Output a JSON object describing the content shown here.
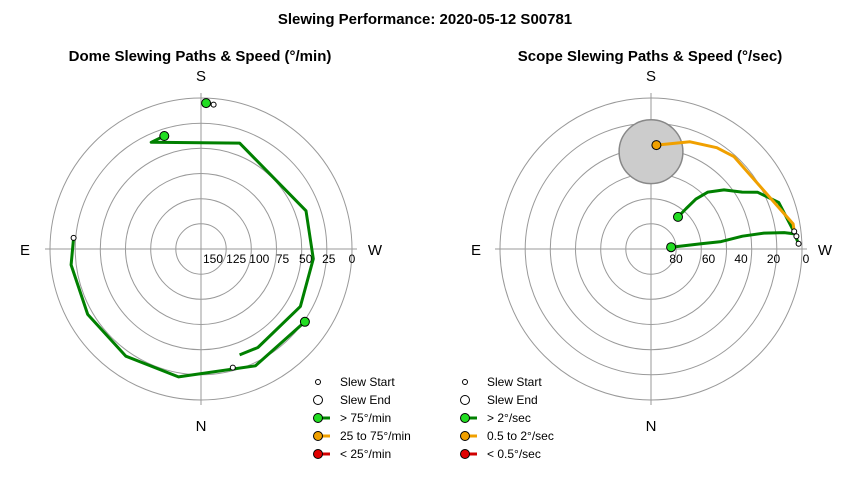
{
  "title": "Slewing Performance: 2020-05-12 S00781",
  "chart_data": [
    {
      "type": "polar",
      "title": "Dome Slewing Paths & Speed (°/min)",
      "compass": {
        "top": "S",
        "bottom": "N",
        "left": "E",
        "right": "W"
      },
      "radial_ticks": [
        "150",
        "125",
        "100",
        "75",
        "50",
        "25",
        "0"
      ],
      "rlim": [
        150,
        0
      ],
      "grid": true,
      "legend": {
        "placement": "bottom-right",
        "entries": [
          "Slew Start",
          "Slew End",
          "> 75°/min",
          "25 to 75°/min",
          "< 25°/min"
        ]
      },
      "series": [
        {
          "name": "> 75°/min",
          "color": "#008000",
          "closed": false,
          "points": [
            [
              342,
              118
            ],
            [
              335,
              117
            ],
            [
              20,
              112
            ],
            [
              70,
              111
            ],
            [
              95,
              112
            ],
            [
              120,
              114
            ],
            [
              150,
              113
            ],
            [
              160,
              112
            ]
          ],
          "start": [
            165,
            122
          ],
          "end": [
            342,
            118
          ]
        },
        {
          "name": "> 75°/min",
          "color": "#008000",
          "closed": false,
          "points": [
            [
              125,
              126
            ],
            [
              155,
              128
            ],
            [
              190,
              129
            ],
            [
              215,
              130
            ],
            [
              240,
              130
            ],
            [
              263,
              130
            ],
            [
              275,
              127
            ]
          ],
          "start": [
            275,
            127
          ],
          "end": [
            125,
            126
          ]
        },
        {
          "name": "> 75°/min",
          "color": "#008000",
          "closed": false,
          "points": [
            [
              2,
              145
            ],
            [
              5,
              144
            ]
          ],
          "start": [
            5,
            144
          ],
          "end": [
            2,
            145
          ]
        }
      ]
    },
    {
      "type": "polar",
      "title": "Scope Slewing Paths & Speed (°/sec)",
      "compass": {
        "top": "S",
        "bottom": "N",
        "left": "E",
        "right": "W"
      },
      "radial_ticks": [
        "80",
        "60",
        "40",
        "20",
        "0"
      ],
      "rlim": [
        90,
        0
      ],
      "grid": true,
      "legend": {
        "placement": "bottom-left",
        "entries": [
          "Slew Start",
          "Slew End",
          "> 2°/sec",
          "0.5 to 2°/sec",
          "< 0.5°/sec"
        ]
      },
      "shaded_region": {
        "az": 0,
        "alt": 58,
        "radius_deg": 19,
        "color": "#cccccc"
      },
      "series": [
        {
          "name": "> 2°/sec",
          "color": "#008000",
          "closed": false,
          "points": [
            [
              85,
              12
            ],
            [
              84,
              30
            ],
            [
              84,
              42
            ],
            [
              82,
              55
            ],
            [
              82,
              68
            ],
            [
              83,
              80
            ],
            [
              84,
              86
            ],
            [
              88,
              88
            ]
          ],
          "start": [
            88,
            88
          ],
          "end": [
            85,
            12
          ]
        },
        {
          "name": "> 2°/sec",
          "color": "#008000",
          "closed": false,
          "points": [
            [
              85,
              87
            ],
            [
              70,
              81
            ],
            [
              62,
              72
            ],
            [
              58,
              64
            ],
            [
              51,
              56
            ],
            [
              45,
              48
            ],
            [
              42,
              40
            ],
            [
              41,
              32
            ],
            [
              40,
              25
            ]
          ],
          "start": [
            85,
            87
          ],
          "end": [
            40,
            25
          ]
        },
        {
          "name": "0.5 to 2°/sec",
          "color": "#f0a000",
          "closed": false,
          "points": [
            [
              83,
              86
            ],
            [
              80,
              86
            ],
            [
              42,
              74
            ],
            [
              33,
              72
            ],
            [
              20,
              68
            ],
            [
              3,
              62
            ]
          ],
          "start": [
            83,
            86
          ],
          "end": [
            3,
            62
          ]
        }
      ]
    }
  ]
}
